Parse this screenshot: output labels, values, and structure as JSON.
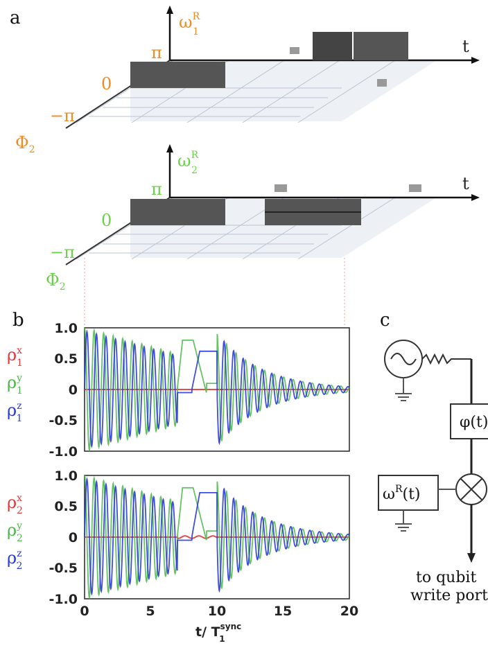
{
  "figure": {
    "labels": {
      "a": "a",
      "b": "b",
      "c": "c"
    }
  },
  "panel_a": {
    "qubit1": {
      "omega_label": "ω",
      "omega_sup": "R",
      "omega_sub": "1",
      "phi_label": "Φ",
      "phi_sub": "2",
      "t_label": "t",
      "phase_ticks": [
        "π",
        "0",
        "−π"
      ],
      "color": "#f08a24"
    },
    "qubit2": {
      "omega_label": "ω",
      "omega_sup": "R",
      "omega_sub": "2",
      "phi_label": "Φ",
      "phi_sub": "2",
      "t_label": "t",
      "phase_ticks": [
        "π",
        "0",
        "−π"
      ],
      "color": "#6ad24a"
    }
  },
  "panel_b": {
    "xlabel_main": "t/ T",
    "xlabel_sup": "sync",
    "xlabel_sub": "1",
    "x_ticks": [
      "0",
      "5",
      "10",
      "15",
      "20"
    ],
    "y_ticks": [
      "1.0",
      "0.5",
      "0",
      "-0.5",
      "-1.0"
    ],
    "top_legend": [
      {
        "main": "ρ",
        "sup": "x",
        "sub": "1",
        "color": "#e03a3a"
      },
      {
        "main": "ρ",
        "sup": "y",
        "sub": "1",
        "color": "#4ab84a"
      },
      {
        "main": "ρ",
        "sup": "z",
        "sub": "1",
        "color": "#2a3ad8"
      }
    ],
    "bottom_legend": [
      {
        "main": "ρ",
        "sup": "x",
        "sub": "2",
        "color": "#e03a3a"
      },
      {
        "main": "ρ",
        "sup": "y",
        "sub": "2",
        "color": "#4ab84a"
      },
      {
        "main": "ρ",
        "sup": "z",
        "sub": "2",
        "color": "#2a3ad8"
      }
    ]
  },
  "panel_c": {
    "phase_box": "φ(t)",
    "omega_box_main": "ω",
    "omega_box_sup": "R",
    "omega_box_arg": "(t)",
    "caption_line1": "to qubit",
    "caption_line2": "write port"
  },
  "chart_data": [
    {
      "type": "line",
      "x": [
        0,
        20
      ],
      "xlim": [
        0,
        20
      ],
      "ylim": [
        -1.0,
        1.0
      ],
      "series": [
        {
          "name": "ρ1x",
          "color": "#e03a3a"
        },
        {
          "name": "ρ1y",
          "color": "#4ab84a"
        },
        {
          "name": "ρ1z",
          "color": "#2a3ad8"
        }
      ]
    },
    {
      "type": "line",
      "x": [
        0,
        20
      ],
      "xlim": [
        0,
        20
      ],
      "ylim": [
        -1.0,
        1.0
      ],
      "series": [
        {
          "name": "ρ2x",
          "color": "#e03a3a"
        },
        {
          "name": "ρ2y",
          "color": "#4ab84a"
        },
        {
          "name": "ρ2z",
          "color": "#2a3ad8"
        }
      ]
    }
  ]
}
